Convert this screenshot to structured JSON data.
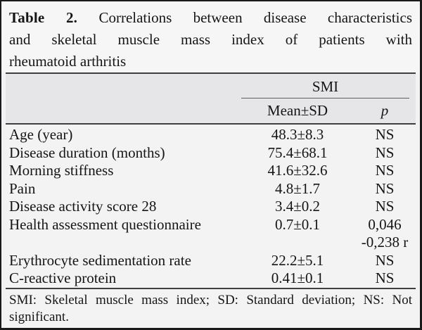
{
  "title": {
    "prefix": "Table 2.",
    "line1_rest": "Correlations between disease characteristics",
    "line2": "and skeletal muscle mass index of patients with",
    "line3": "rheumatoid arthritis"
  },
  "header": {
    "group_label": "SMI",
    "mean_label": "Mean±SD",
    "p_label": "p"
  },
  "rows": [
    {
      "label": "Age (year)",
      "mean": "48.3±8.3",
      "p": "NS"
    },
    {
      "label": "Disease duration (months)",
      "mean": "75.4±68.1",
      "p": "NS"
    },
    {
      "label": "Morning stiffness",
      "mean": "41.6±32.6",
      "p": "NS"
    },
    {
      "label": "Pain",
      "mean": "4.8±1.7",
      "p": "NS"
    },
    {
      "label": "Disease activity score 28",
      "mean": "3.4±0.2",
      "p": "NS"
    },
    {
      "label": "Health assessment questionnaire",
      "mean": "0.7±0.1",
      "p": "0,046"
    },
    {
      "label": "",
      "mean": "",
      "p": "-0,238 r"
    },
    {
      "label": "Erythrocyte sedimentation rate",
      "mean": "22.2±5.1",
      "p": "NS"
    },
    {
      "label": "C-reactive protein",
      "mean": "0.41±0.1",
      "p": "NS"
    }
  ],
  "footnote": {
    "line1": "SMI: Skeletal muscle mass index; SD: Standard deviation; NS: Not",
    "line2": "significant."
  },
  "colors": {
    "card_border": "#1a1a1a",
    "caption_bg": "#f6f6f7",
    "header_band_bg": "#e6e6e8",
    "body_bg": "#f3f3f4",
    "rule": "#3f3f3f",
    "text": "#151515"
  }
}
